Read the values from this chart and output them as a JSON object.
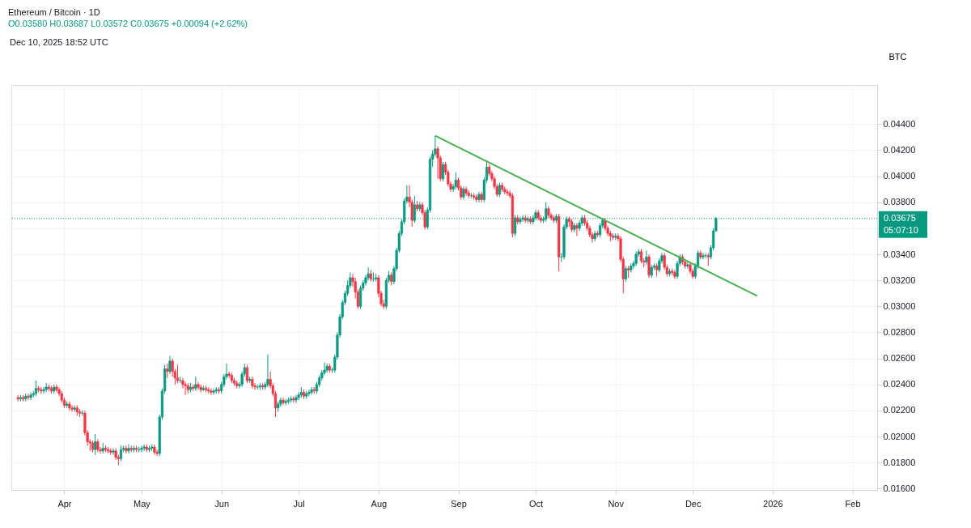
{
  "chart_data": {
    "type": "candlestick",
    "title": "Ethereum / Bitcoin · 1D",
    "subtitle": "O0.03580 H0.03687 L0.03572 C0.03675 +0.00094 (+2.62%)",
    "ylabel": "BTC",
    "annotations": [
      "Dec 10, 2025 18:52 UTC",
      "05:07:10"
    ],
    "colors": [
      "#f23645",
      "#089981",
      "#f23645",
      "#089981",
      "#f23645",
      "#089981",
      "#089981",
      "#089981",
      "#f23645",
      "#f23645",
      "#089981",
      "#089981",
      "#f23645",
      "#f23645",
      "#089981",
      "#f23645",
      "#f23645",
      "#f23645",
      "#f23645",
      "#089981",
      "#f23645",
      "#f23645",
      "#089981",
      "#f23645",
      "#f23645",
      "#089981",
      "#f23645",
      "#f23645",
      "#f23645",
      "#f23645",
      "#089981",
      "#f23645",
      "#f23645",
      "#089981",
      "#f23645",
      "#f23645",
      "#f23645",
      "#089981",
      "#f23645",
      "#f23645",
      "#089981",
      "#089981",
      "#f23645",
      "#089981",
      "#f23645",
      "#089981",
      "#f23645",
      "#089981",
      "#089981",
      "#089981",
      "#f23645",
      "#089981",
      "#089981",
      "#f23645",
      "#f23645",
      "#089981",
      "#089981",
      "#089981",
      "#f23645",
      "#089981",
      "#f23645",
      "#f23645",
      "#f23645",
      "#089981",
      "#f23645",
      "#f23645",
      "#f23645",
      "#089981",
      "#f23645",
      "#089981",
      "#f23645",
      "#f23645",
      "#089981",
      "#f23645",
      "#f23645",
      "#f23645",
      "#089981",
      "#089981",
      "#f23645",
      "#089981",
      "#089981",
      "#089981",
      "#f23645",
      "#f23645",
      "#f23645",
      "#f23645",
      "#089981",
      "#089981",
      "#089981",
      "#f23645",
      "#089981",
      "#f23645",
      "#f23645",
      "#089981",
      "#089981",
      "#f23645",
      "#089981",
      "#089981",
      "#f23645",
      "#f23645",
      "#f23645",
      "#089981",
      "#089981",
      "#f23645",
      "#089981",
      "#089981",
      "#089981",
      "#f23645",
      "#089981",
      "#089981",
      "#089981",
      "#f23645",
      "#089981",
      "#089981",
      "#089981",
      "#f23645",
      "#089981",
      "#089981",
      "#089981",
      "#089981",
      "#089981",
      "#f23645",
      "#089981",
      "#089981",
      "#089981",
      "#089981",
      "#089981",
      "#089981",
      "#089981",
      "#089981",
      "#f23645",
      "#f23645",
      "#f23645",
      "#089981",
      "#089981",
      "#089981",
      "#089981",
      "#f23645",
      "#089981",
      "#089981",
      "#f23645",
      "#f23645",
      "#f23645",
      "#089981",
      "#089981",
      "#f23645",
      "#089981",
      "#089981",
      "#089981",
      "#089981",
      "#089981",
      "#089981",
      "#f23645",
      "#f23645",
      "#089981",
      "#f23645",
      "#089981",
      "#f23645",
      "#f23645",
      "#089981",
      "#089981",
      "#089981",
      "#089981",
      "#f23645",
      "#f23645",
      "#089981",
      "#f23645",
      "#f23645",
      "#f23645",
      "#089981",
      "#089981",
      "#f23645",
      "#f23645",
      "#089981",
      "#f23645",
      "#f23645",
      "#089981",
      "#f23645",
      "#f23645",
      "#089981",
      "#f23645",
      "#089981",
      "#089981",
      "#f23645",
      "#f23645",
      "#f23645",
      "#f23645",
      "#089981",
      "#f23645",
      "#f23645",
      "#f23645",
      "#f23645",
      "#f23645",
      "#089981",
      "#f23645",
      "#089981",
      "#089981",
      "#f23645",
      "#089981",
      "#f23645",
      "#089981",
      "#089981",
      "#f23645",
      "#f23645",
      "#089981",
      "#089981",
      "#f23645",
      "#f23645",
      "#f23645",
      "#089981",
      "#f23645",
      "#089981",
      "#089981",
      "#089981",
      "#f23645",
      "#f23645",
      "#089981",
      "#f23645",
      "#089981",
      "#089981",
      "#f23645",
      "#f23645",
      "#f23645",
      "#f23645",
      "#089981",
      "#f23645",
      "#089981",
      "#089981",
      "#f23645",
      "#f23645",
      "#f23645",
      "#f23645",
      "#089981",
      "#f23645",
      "#f23645",
      "#f23645",
      "#089981",
      "#f23645",
      "#089981",
      "#089981",
      "#089981",
      "#089981",
      "#f23645",
      "#f23645",
      "#089981",
      "#f23645",
      "#089981",
      "#089981",
      "#f23645",
      "#089981",
      "#089981",
      "#f23645",
      "#f23645",
      "#089981",
      "#f23645",
      "#f23645",
      "#089981",
      "#089981",
      "#f23645",
      "#f23645",
      "#089981",
      "#f23645",
      "#f23645",
      "#089981",
      "#089981",
      "#f23645",
      "#089981",
      "#089981",
      "#f23645",
      "#089981",
      "#089981",
      "#089981"
    ],
    "grid": true,
    "xlim": [
      "2025-03-13",
      "2026-02-09"
    ],
    "xticks": [
      {
        "value": "2025-04-01",
        "label": "Apr"
      },
      {
        "value": "2025-05-01",
        "label": "May"
      },
      {
        "value": "2025-06-01",
        "label": "Jun"
      },
      {
        "value": "2025-07-01",
        "label": "Jul"
      },
      {
        "value": "2025-08-01",
        "label": "Aug"
      },
      {
        "value": "2025-09-01",
        "label": "Sep"
      },
      {
        "value": "2025-10-01",
        "label": "Oct"
      },
      {
        "value": "2025-11-01",
        "label": "Nov"
      },
      {
        "value": "2025-12-01",
        "label": "Dec"
      },
      {
        "value": "2026-01-01",
        "label": "2026"
      },
      {
        "value": "2026-02-01",
        "label": "Feb"
      }
    ],
    "ylim": [
      0.0159,
      0.047
    ],
    "yticks": [
      {
        "value": 0.016,
        "label": "0.01600"
      },
      {
        "value": 0.018,
        "label": "0.01800"
      },
      {
        "value": 0.02,
        "label": "0.02000"
      },
      {
        "value": 0.022,
        "label": "0.02200"
      },
      {
        "value": 0.024,
        "label": "0.02400"
      },
      {
        "value": 0.026,
        "label": "0.02600"
      },
      {
        "value": 0.028,
        "label": "0.02800"
      },
      {
        "value": 0.03,
        "label": "0.03000"
      },
      {
        "value": 0.032,
        "label": "0.03200"
      },
      {
        "value": 0.034,
        "label": "0.03400"
      },
      {
        "value": 0.036,
        "label": null
      },
      {
        "value": 0.038,
        "label": "0.03800"
      },
      {
        "value": 0.04,
        "label": "0.04000"
      },
      {
        "value": 0.042,
        "label": "0.04200"
      },
      {
        "value": 0.044,
        "label": "0.04400"
      }
    ],
    "ref_lines": [
      {
        "axis": "y",
        "value": 0.03675,
        "label": "0.03675",
        "color": "#089981",
        "line_style": "dotted"
      }
    ],
    "series": [
      {
        "type": "line",
        "color": "#4caf50",
        "x": [
          "2025-08-23",
          "2025-12-26"
        ],
        "values": [
          0.0431,
          0.0308
        ]
      }
    ],
    "x": [
      "2025-03-14",
      "2025-03-15",
      "2025-03-16",
      "2025-03-17",
      "2025-03-18",
      "2025-03-19",
      "2025-03-20",
      "2025-03-21",
      "2025-03-22",
      "2025-03-23",
      "2025-03-24",
      "2025-03-25",
      "2025-03-26",
      "2025-03-27",
      "2025-03-28",
      "2025-03-29",
      "2025-03-30",
      "2025-03-31",
      "2025-04-01",
      "2025-04-02",
      "2025-04-03",
      "2025-04-04",
      "2025-04-05",
      "2025-04-06",
      "2025-04-07",
      "2025-04-08",
      "2025-04-09",
      "2025-04-10",
      "2025-04-11",
      "2025-04-12",
      "2025-04-13",
      "2025-04-14",
      "2025-04-15",
      "2025-04-16",
      "2025-04-17",
      "2025-04-18",
      "2025-04-19",
      "2025-04-20",
      "2025-04-21",
      "2025-04-22",
      "2025-04-23",
      "2025-04-24",
      "2025-04-25",
      "2025-04-26",
      "2025-04-27",
      "2025-04-28",
      "2025-04-29",
      "2025-04-30",
      "2025-05-01",
      "2025-05-02",
      "2025-05-03",
      "2025-05-04",
      "2025-05-05",
      "2025-05-06",
      "2025-05-07",
      "2025-05-08",
      "2025-05-09",
      "2025-05-10",
      "2025-05-11",
      "2025-05-12",
      "2025-05-13",
      "2025-05-14",
      "2025-05-15",
      "2025-05-16",
      "2025-05-17",
      "2025-05-18",
      "2025-05-19",
      "2025-05-20",
      "2025-05-21",
      "2025-05-22",
      "2025-05-23",
      "2025-05-24",
      "2025-05-25",
      "2025-05-26",
      "2025-05-27",
      "2025-05-28",
      "2025-05-29",
      "2025-05-30",
      "2025-05-31",
      "2025-06-01",
      "2025-06-02",
      "2025-06-03",
      "2025-06-04",
      "2025-06-05",
      "2025-06-06",
      "2025-06-07",
      "2025-06-08",
      "2025-06-09",
      "2025-06-10",
      "2025-06-11",
      "2025-06-12",
      "2025-06-13",
      "2025-06-14",
      "2025-06-15",
      "2025-06-16",
      "2025-06-17",
      "2025-06-18",
      "2025-06-19",
      "2025-06-20",
      "2025-06-21",
      "2025-06-22",
      "2025-06-23",
      "2025-06-24",
      "2025-06-25",
      "2025-06-26",
      "2025-06-27",
      "2025-06-28",
      "2025-06-29",
      "2025-06-30",
      "2025-07-01",
      "2025-07-02",
      "2025-07-03",
      "2025-07-04",
      "2025-07-05",
      "2025-07-06",
      "2025-07-07",
      "2025-07-08",
      "2025-07-09",
      "2025-07-10",
      "2025-07-11",
      "2025-07-12",
      "2025-07-13",
      "2025-07-14",
      "2025-07-15",
      "2025-07-16",
      "2025-07-17",
      "2025-07-18",
      "2025-07-19",
      "2025-07-20",
      "2025-07-21",
      "2025-07-22",
      "2025-07-23",
      "2025-07-24",
      "2025-07-25",
      "2025-07-26",
      "2025-07-27",
      "2025-07-28",
      "2025-07-29",
      "2025-07-30",
      "2025-07-31",
      "2025-08-01",
      "2025-08-02",
      "2025-08-03",
      "2025-08-04",
      "2025-08-05",
      "2025-08-06",
      "2025-08-07",
      "2025-08-08",
      "2025-08-09",
      "2025-08-10",
      "2025-08-11",
      "2025-08-12",
      "2025-08-13",
      "2025-08-14",
      "2025-08-15",
      "2025-08-16",
      "2025-08-17",
      "2025-08-18",
      "2025-08-19",
      "2025-08-20",
      "2025-08-21",
      "2025-08-22",
      "2025-08-23",
      "2025-08-24",
      "2025-08-25",
      "2025-08-26",
      "2025-08-27",
      "2025-08-28",
      "2025-08-29",
      "2025-08-30",
      "2025-08-31",
      "2025-09-01",
      "2025-09-02",
      "2025-09-03",
      "2025-09-04",
      "2025-09-05",
      "2025-09-06",
      "2025-09-07",
      "2025-09-08",
      "2025-09-09",
      "2025-09-10",
      "2025-09-11",
      "2025-09-12",
      "2025-09-13",
      "2025-09-14",
      "2025-09-15",
      "2025-09-16",
      "2025-09-17",
      "2025-09-18",
      "2025-09-19",
      "2025-09-20",
      "2025-09-21",
      "2025-09-22",
      "2025-09-23",
      "2025-09-24",
      "2025-09-25",
      "2025-09-26",
      "2025-09-27",
      "2025-09-28",
      "2025-09-29",
      "2025-09-30",
      "2025-10-01",
      "2025-10-02",
      "2025-10-03",
      "2025-10-04",
      "2025-10-05",
      "2025-10-06",
      "2025-10-07",
      "2025-10-08",
      "2025-10-09",
      "2025-10-10",
      "2025-10-11",
      "2025-10-12",
      "2025-10-13",
      "2025-10-14",
      "2025-10-15",
      "2025-10-16",
      "2025-10-17",
      "2025-10-18",
      "2025-10-19",
      "2025-10-20",
      "2025-10-21",
      "2025-10-22",
      "2025-10-23",
      "2025-10-24",
      "2025-10-25",
      "2025-10-26",
      "2025-10-27",
      "2025-10-28",
      "2025-10-29",
      "2025-10-30",
      "2025-10-31",
      "2025-11-01",
      "2025-11-02",
      "2025-11-03",
      "2025-11-04",
      "2025-11-05",
      "2025-11-06",
      "2025-11-07",
      "2025-11-08",
      "2025-11-09",
      "2025-11-10",
      "2025-11-11",
      "2025-11-12",
      "2025-11-13",
      "2025-11-14",
      "2025-11-15",
      "2025-11-16",
      "2025-11-17",
      "2025-11-18",
      "2025-11-19",
      "2025-11-20",
      "2025-11-21",
      "2025-11-22",
      "2025-11-23",
      "2025-11-24",
      "2025-11-25",
      "2025-11-26",
      "2025-11-27",
      "2025-11-28",
      "2025-11-29",
      "2025-11-30",
      "2025-12-01",
      "2025-12-02",
      "2025-12-03",
      "2025-12-04",
      "2025-12-05",
      "2025-12-06",
      "2025-12-07",
      "2025-12-08",
      "2025-12-09",
      "2025-12-10"
    ],
    "ohlc": [
      [
        0.023,
        0.0232,
        0.0227,
        0.0229
      ],
      [
        0.0229,
        0.0232,
        0.0227,
        0.023
      ],
      [
        0.023,
        0.0232,
        0.0227,
        0.0229
      ],
      [
        0.0229,
        0.0233,
        0.0227,
        0.0231
      ],
      [
        0.0231,
        0.0233,
        0.0228,
        0.023
      ],
      [
        0.023,
        0.0234,
        0.0228,
        0.0232
      ],
      [
        0.0232,
        0.0235,
        0.023,
        0.0233
      ],
      [
        0.0233,
        0.0243,
        0.0231,
        0.0237
      ],
      [
        0.0237,
        0.0239,
        0.0234,
        0.0236
      ],
      [
        0.0236,
        0.0238,
        0.0233,
        0.0235
      ],
      [
        0.0235,
        0.0238,
        0.0233,
        0.0236
      ],
      [
        0.0236,
        0.0241,
        0.0234,
        0.0238
      ],
      [
        0.0238,
        0.024,
        0.0235,
        0.0237
      ],
      [
        0.0237,
        0.0239,
        0.0233,
        0.0235
      ],
      [
        0.0235,
        0.024,
        0.0233,
        0.0238
      ],
      [
        0.0238,
        0.024,
        0.0234,
        0.0236
      ],
      [
        0.0236,
        0.0238,
        0.0231,
        0.0233
      ],
      [
        0.0233,
        0.0235,
        0.0226,
        0.0228
      ],
      [
        0.0228,
        0.023,
        0.0222,
        0.0224
      ],
      [
        0.0224,
        0.0227,
        0.0222,
        0.0225
      ],
      [
        0.0225,
        0.0227,
        0.022,
        0.0222
      ],
      [
        0.0222,
        0.0224,
        0.0219,
        0.0221
      ],
      [
        0.0221,
        0.0224,
        0.0219,
        0.0222
      ],
      [
        0.0222,
        0.0224,
        0.0216,
        0.0219
      ],
      [
        0.0219,
        0.0221,
        0.0215,
        0.0218
      ],
      [
        0.0218,
        0.022,
        0.0216,
        0.0218
      ],
      [
        0.0218,
        0.022,
        0.0201,
        0.0203
      ],
      [
        0.0203,
        0.0205,
        0.0193,
        0.0196
      ],
      [
        0.0196,
        0.0198,
        0.0189,
        0.0195
      ],
      [
        0.0195,
        0.0197,
        0.0188,
        0.019
      ],
      [
        0.019,
        0.0202,
        0.0186,
        0.0196
      ],
      [
        0.0196,
        0.0198,
        0.0188,
        0.019
      ],
      [
        0.019,
        0.0192,
        0.0187,
        0.0189
      ],
      [
        0.0189,
        0.0195,
        0.0187,
        0.0191
      ],
      [
        0.0191,
        0.0193,
        0.0188,
        0.019
      ],
      [
        0.019,
        0.0192,
        0.0187,
        0.0189
      ],
      [
        0.0189,
        0.0191,
        0.0186,
        0.0188
      ],
      [
        0.0188,
        0.0191,
        0.0186,
        0.0189
      ],
      [
        0.0189,
        0.0191,
        0.0182,
        0.0184
      ],
      [
        0.0184,
        0.0186,
        0.0178,
        0.0183
      ],
      [
        0.0183,
        0.0193,
        0.0181,
        0.019
      ],
      [
        0.019,
        0.0193,
        0.0188,
        0.0191
      ],
      [
        0.0191,
        0.0193,
        0.0187,
        0.0189
      ],
      [
        0.0189,
        0.0194,
        0.0187,
        0.0191
      ],
      [
        0.0191,
        0.0193,
        0.0188,
        0.019
      ],
      [
        0.019,
        0.0193,
        0.0188,
        0.0191
      ],
      [
        0.0191,
        0.0193,
        0.0188,
        0.019
      ],
      [
        0.019,
        0.0192,
        0.0188,
        0.019
      ],
      [
        0.019,
        0.0193,
        0.0188,
        0.0191
      ],
      [
        0.0191,
        0.0194,
        0.0189,
        0.0192
      ],
      [
        0.0192,
        0.0194,
        0.0188,
        0.019
      ],
      [
        0.019,
        0.0193,
        0.0188,
        0.0191
      ],
      [
        0.0191,
        0.0194,
        0.0189,
        0.0192
      ],
      [
        0.0192,
        0.0194,
        0.0186,
        0.0188
      ],
      [
        0.0188,
        0.019,
        0.0185,
        0.0187
      ],
      [
        0.0187,
        0.0217,
        0.0185,
        0.0215
      ],
      [
        0.0215,
        0.0237,
        0.0213,
        0.0235
      ],
      [
        0.0235,
        0.0255,
        0.0233,
        0.0252
      ],
      [
        0.0252,
        0.0256,
        0.0245,
        0.025
      ],
      [
        0.025,
        0.0262,
        0.0248,
        0.0258
      ],
      [
        0.0258,
        0.026,
        0.0246,
        0.025
      ],
      [
        0.025,
        0.0252,
        0.024,
        0.0245
      ],
      [
        0.0245,
        0.0255,
        0.0241,
        0.0243
      ],
      [
        0.0243,
        0.0246,
        0.0241,
        0.0243
      ],
      [
        0.0243,
        0.0245,
        0.0237,
        0.024
      ],
      [
        0.024,
        0.0242,
        0.0232,
        0.0239
      ],
      [
        0.0239,
        0.0241,
        0.0233,
        0.0236
      ],
      [
        0.0236,
        0.0241,
        0.0234,
        0.0238
      ],
      [
        0.0238,
        0.024,
        0.0235,
        0.0237
      ],
      [
        0.0237,
        0.0246,
        0.0235,
        0.024
      ],
      [
        0.024,
        0.0242,
        0.0236,
        0.0238
      ],
      [
        0.0238,
        0.024,
        0.0234,
        0.0236
      ],
      [
        0.0236,
        0.0239,
        0.0235,
        0.0237
      ],
      [
        0.0237,
        0.0239,
        0.0234,
        0.0236
      ],
      [
        0.0236,
        0.0238,
        0.0233,
        0.0235
      ],
      [
        0.0235,
        0.0237,
        0.0232,
        0.0234
      ],
      [
        0.0234,
        0.0237,
        0.0232,
        0.0235
      ],
      [
        0.0235,
        0.0238,
        0.0233,
        0.0236
      ],
      [
        0.0236,
        0.0238,
        0.0233,
        0.0235
      ],
      [
        0.0235,
        0.0242,
        0.0233,
        0.024
      ],
      [
        0.024,
        0.0248,
        0.0238,
        0.0246
      ],
      [
        0.0246,
        0.0256,
        0.0244,
        0.0248
      ],
      [
        0.0248,
        0.025,
        0.0245,
        0.0247
      ],
      [
        0.0247,
        0.0249,
        0.0241,
        0.0243
      ],
      [
        0.0243,
        0.0245,
        0.0239,
        0.0241
      ],
      [
        0.0241,
        0.0243,
        0.0237,
        0.0239
      ],
      [
        0.0239,
        0.0242,
        0.0237,
        0.024
      ],
      [
        0.024,
        0.025,
        0.0238,
        0.0248
      ],
      [
        0.0248,
        0.0256,
        0.0246,
        0.0253
      ],
      [
        0.0253,
        0.0255,
        0.0241,
        0.0243
      ],
      [
        0.0243,
        0.0246,
        0.0241,
        0.0244
      ],
      [
        0.0244,
        0.0246,
        0.0237,
        0.0239
      ],
      [
        0.0239,
        0.0241,
        0.0236,
        0.0238
      ],
      [
        0.0238,
        0.024,
        0.0236,
        0.0238
      ],
      [
        0.0238,
        0.0241,
        0.0236,
        0.0239
      ],
      [
        0.0239,
        0.0241,
        0.0236,
        0.0238
      ],
      [
        0.0238,
        0.0242,
        0.0236,
        0.024
      ],
      [
        0.024,
        0.0263,
        0.0238,
        0.0244
      ],
      [
        0.0244,
        0.025,
        0.0237,
        0.0239
      ],
      [
        0.0239,
        0.0241,
        0.0231,
        0.0233
      ],
      [
        0.0233,
        0.0235,
        0.0215,
        0.0222
      ],
      [
        0.0222,
        0.0227,
        0.0219,
        0.0225
      ],
      [
        0.0225,
        0.023,
        0.0223,
        0.0228
      ],
      [
        0.0228,
        0.023,
        0.0224,
        0.0226
      ],
      [
        0.0226,
        0.0229,
        0.0224,
        0.0227
      ],
      [
        0.0227,
        0.023,
        0.0225,
        0.0228
      ],
      [
        0.0228,
        0.0231,
        0.0226,
        0.0229
      ],
      [
        0.0229,
        0.0231,
        0.0226,
        0.0228
      ],
      [
        0.0228,
        0.0232,
        0.0226,
        0.023
      ],
      [
        0.023,
        0.0234,
        0.0228,
        0.0232
      ],
      [
        0.0232,
        0.0238,
        0.023,
        0.0234
      ],
      [
        0.0234,
        0.0236,
        0.0229,
        0.0231
      ],
      [
        0.0231,
        0.0235,
        0.0229,
        0.0233
      ],
      [
        0.0233,
        0.0236,
        0.0231,
        0.0234
      ],
      [
        0.0234,
        0.0238,
        0.0232,
        0.0236
      ],
      [
        0.0236,
        0.0238,
        0.0233,
        0.0235
      ],
      [
        0.0235,
        0.0242,
        0.0233,
        0.024
      ],
      [
        0.024,
        0.0247,
        0.0238,
        0.0245
      ],
      [
        0.0245,
        0.0251,
        0.0243,
        0.0249
      ],
      [
        0.0249,
        0.0257,
        0.0247,
        0.0251
      ],
      [
        0.0251,
        0.0256,
        0.0249,
        0.0254
      ],
      [
        0.0254,
        0.0256,
        0.0249,
        0.0251
      ],
      [
        0.0251,
        0.0253,
        0.0249,
        0.0251
      ],
      [
        0.0251,
        0.0263,
        0.0249,
        0.0261
      ],
      [
        0.0261,
        0.028,
        0.0259,
        0.0278
      ],
      [
        0.0278,
        0.0294,
        0.0276,
        0.0292
      ],
      [
        0.0292,
        0.0305,
        0.029,
        0.0303
      ],
      [
        0.0303,
        0.0312,
        0.0301,
        0.031
      ],
      [
        0.031,
        0.032,
        0.0308,
        0.0316
      ],
      [
        0.0316,
        0.0326,
        0.0314,
        0.0322
      ],
      [
        0.0322,
        0.0325,
        0.0315,
        0.0319
      ],
      [
        0.0319,
        0.0322,
        0.0306,
        0.0311
      ],
      [
        0.0311,
        0.0313,
        0.0298,
        0.03
      ],
      [
        0.03,
        0.0316,
        0.0298,
        0.0314
      ],
      [
        0.0314,
        0.032,
        0.0312,
        0.0318
      ],
      [
        0.0318,
        0.0324,
        0.0316,
        0.0322
      ],
      [
        0.0322,
        0.033,
        0.032,
        0.0325
      ],
      [
        0.0325,
        0.0328,
        0.0319,
        0.0321
      ],
      [
        0.0321,
        0.0326,
        0.0319,
        0.0321
      ],
      [
        0.0321,
        0.0325,
        0.0319,
        0.0322
      ],
      [
        0.0322,
        0.0324,
        0.0307,
        0.031
      ],
      [
        0.031,
        0.0312,
        0.03,
        0.0302
      ],
      [
        0.0302,
        0.0305,
        0.0298,
        0.03
      ],
      [
        0.03,
        0.0322,
        0.0298,
        0.032
      ],
      [
        0.032,
        0.0327,
        0.0318,
        0.0324
      ],
      [
        0.0324,
        0.0326,
        0.0316,
        0.0319
      ],
      [
        0.0319,
        0.0331,
        0.0317,
        0.0329
      ],
      [
        0.0329,
        0.0345,
        0.0327,
        0.0343
      ],
      [
        0.0343,
        0.0358,
        0.0341,
        0.0356
      ],
      [
        0.0356,
        0.0367,
        0.0354,
        0.0365
      ],
      [
        0.0365,
        0.0383,
        0.0363,
        0.0381
      ],
      [
        0.0381,
        0.0393,
        0.0379,
        0.0384
      ],
      [
        0.0384,
        0.0393,
        0.0376,
        0.038
      ],
      [
        0.038,
        0.0382,
        0.0361,
        0.0366
      ],
      [
        0.0366,
        0.0385,
        0.0364,
        0.0378
      ],
      [
        0.0378,
        0.0381,
        0.0373,
        0.0375
      ],
      [
        0.0375,
        0.038,
        0.0373,
        0.0378
      ],
      [
        0.0378,
        0.038,
        0.037,
        0.0372
      ],
      [
        0.0372,
        0.0374,
        0.0359,
        0.0361
      ],
      [
        0.0361,
        0.0376,
        0.0359,
        0.0374
      ],
      [
        0.0374,
        0.0415,
        0.0372,
        0.0413
      ],
      [
        0.0413,
        0.042,
        0.0407,
        0.0417
      ],
      [
        0.0417,
        0.0431,
        0.0415,
        0.0421
      ],
      [
        0.0421,
        0.0423,
        0.0398,
        0.0414
      ],
      [
        0.0414,
        0.0416,
        0.0396,
        0.0398
      ],
      [
        0.0398,
        0.0411,
        0.0396,
        0.0409
      ],
      [
        0.0409,
        0.0411,
        0.0401,
        0.0403
      ],
      [
        0.0403,
        0.0405,
        0.0392,
        0.0394
      ],
      [
        0.0394,
        0.0396,
        0.0388,
        0.039
      ],
      [
        0.039,
        0.0394,
        0.0388,
        0.0392
      ],
      [
        0.0392,
        0.0403,
        0.039,
        0.0397
      ],
      [
        0.0397,
        0.0399,
        0.0389,
        0.0391
      ],
      [
        0.0391,
        0.0393,
        0.0382,
        0.0384
      ],
      [
        0.0384,
        0.0392,
        0.0382,
        0.039
      ],
      [
        0.039,
        0.0392,
        0.0385,
        0.0387
      ],
      [
        0.0387,
        0.0389,
        0.0383,
        0.0385
      ],
      [
        0.0385,
        0.0387,
        0.0383,
        0.0385
      ],
      [
        0.0385,
        0.0387,
        0.0382,
        0.0384
      ],
      [
        0.0384,
        0.0386,
        0.038,
        0.0382
      ],
      [
        0.0382,
        0.0388,
        0.038,
        0.0386
      ],
      [
        0.0386,
        0.0388,
        0.038,
        0.0382
      ],
      [
        0.0382,
        0.0399,
        0.038,
        0.0397
      ],
      [
        0.0397,
        0.0412,
        0.0395,
        0.0407
      ],
      [
        0.0407,
        0.0409,
        0.04,
        0.0402
      ],
      [
        0.0402,
        0.0404,
        0.0396,
        0.0398
      ],
      [
        0.0398,
        0.04,
        0.039,
        0.0392
      ],
      [
        0.0392,
        0.0394,
        0.0384,
        0.0386
      ],
      [
        0.0386,
        0.0395,
        0.0384,
        0.0393
      ],
      [
        0.0393,
        0.0395,
        0.0388,
        0.039
      ],
      [
        0.039,
        0.0392,
        0.0386,
        0.0388
      ],
      [
        0.0388,
        0.039,
        0.0385,
        0.0387
      ],
      [
        0.0387,
        0.0389,
        0.0383,
        0.0385
      ],
      [
        0.0385,
        0.0387,
        0.0353,
        0.0356
      ],
      [
        0.0356,
        0.037,
        0.0354,
        0.0368
      ],
      [
        0.0368,
        0.037,
        0.0363,
        0.0365
      ],
      [
        0.0365,
        0.0369,
        0.0363,
        0.0367
      ],
      [
        0.0367,
        0.037,
        0.0365,
        0.0368
      ],
      [
        0.0368,
        0.037,
        0.0364,
        0.0366
      ],
      [
        0.0366,
        0.0369,
        0.0364,
        0.0367
      ],
      [
        0.0367,
        0.0369,
        0.0363,
        0.0365
      ],
      [
        0.0365,
        0.037,
        0.0363,
        0.0368
      ],
      [
        0.0368,
        0.0374,
        0.0366,
        0.0372
      ],
      [
        0.0372,
        0.0374,
        0.0366,
        0.0368
      ],
      [
        0.0368,
        0.037,
        0.0364,
        0.0366
      ],
      [
        0.0366,
        0.0369,
        0.0364,
        0.0367
      ],
      [
        0.0367,
        0.038,
        0.0365,
        0.0375
      ],
      [
        0.0375,
        0.0377,
        0.0368,
        0.037
      ],
      [
        0.037,
        0.0372,
        0.0366,
        0.0368
      ],
      [
        0.0368,
        0.037,
        0.0364,
        0.0366
      ],
      [
        0.0366,
        0.0371,
        0.0364,
        0.0369
      ],
      [
        0.0369,
        0.0371,
        0.0327,
        0.0338
      ],
      [
        0.0338,
        0.0341,
        0.0334,
        0.0338
      ],
      [
        0.0338,
        0.0363,
        0.0336,
        0.0361
      ],
      [
        0.0361,
        0.0369,
        0.0359,
        0.0367
      ],
      [
        0.0367,
        0.0369,
        0.0361,
        0.0365
      ],
      [
        0.0365,
        0.0367,
        0.0357,
        0.0359
      ],
      [
        0.0359,
        0.0364,
        0.0357,
        0.0362
      ],
      [
        0.0362,
        0.0364,
        0.0354,
        0.036
      ],
      [
        0.036,
        0.0366,
        0.0358,
        0.0364
      ],
      [
        0.0364,
        0.037,
        0.0362,
        0.0368
      ],
      [
        0.0368,
        0.037,
        0.0362,
        0.0364
      ],
      [
        0.0364,
        0.0366,
        0.0358,
        0.036
      ],
      [
        0.036,
        0.0362,
        0.0353,
        0.0355
      ],
      [
        0.0355,
        0.0357,
        0.0349,
        0.0352
      ],
      [
        0.0352,
        0.0358,
        0.035,
        0.0356
      ],
      [
        0.0356,
        0.0358,
        0.0353,
        0.0355
      ],
      [
        0.0355,
        0.0364,
        0.0353,
        0.0362
      ],
      [
        0.0362,
        0.0368,
        0.036,
        0.0366
      ],
      [
        0.0366,
        0.0368,
        0.0358,
        0.036
      ],
      [
        0.036,
        0.0362,
        0.0354,
        0.0356
      ],
      [
        0.0356,
        0.0358,
        0.035,
        0.0354
      ],
      [
        0.0354,
        0.0356,
        0.0351,
        0.0353
      ],
      [
        0.0353,
        0.0356,
        0.0351,
        0.0354
      ],
      [
        0.0354,
        0.0356,
        0.035,
        0.0352
      ],
      [
        0.0352,
        0.0354,
        0.0334,
        0.0336
      ],
      [
        0.0336,
        0.0338,
        0.031,
        0.0321
      ],
      [
        0.0321,
        0.0331,
        0.0319,
        0.0329
      ],
      [
        0.0329,
        0.0331,
        0.0322,
        0.0328
      ],
      [
        0.0328,
        0.0333,
        0.0326,
        0.0331
      ],
      [
        0.0331,
        0.0335,
        0.0329,
        0.0333
      ],
      [
        0.0333,
        0.0342,
        0.0331,
        0.034
      ],
      [
        0.034,
        0.0344,
        0.0338,
        0.0342
      ],
      [
        0.0342,
        0.0344,
        0.0333,
        0.0335
      ],
      [
        0.0335,
        0.0337,
        0.033,
        0.0334
      ],
      [
        0.0334,
        0.0343,
        0.0332,
        0.0338
      ],
      [
        0.0338,
        0.034,
        0.0322,
        0.0324
      ],
      [
        0.0324,
        0.0332,
        0.0322,
        0.033
      ],
      [
        0.033,
        0.0333,
        0.0328,
        0.0331
      ],
      [
        0.0331,
        0.0333,
        0.0323,
        0.0328
      ],
      [
        0.0328,
        0.0337,
        0.0326,
        0.0335
      ],
      [
        0.0335,
        0.0341,
        0.0333,
        0.0339
      ],
      [
        0.0339,
        0.0341,
        0.0328,
        0.033
      ],
      [
        0.033,
        0.0332,
        0.0323,
        0.0325
      ],
      [
        0.0325,
        0.0329,
        0.0323,
        0.0327
      ],
      [
        0.0327,
        0.0329,
        0.0324,
        0.0326
      ],
      [
        0.0326,
        0.0328,
        0.0321,
        0.0323
      ],
      [
        0.0323,
        0.0335,
        0.0321,
        0.0333
      ],
      [
        0.0333,
        0.034,
        0.0331,
        0.0338
      ],
      [
        0.0338,
        0.034,
        0.0332,
        0.0334
      ],
      [
        0.0334,
        0.0336,
        0.0329,
        0.0331
      ],
      [
        0.0331,
        0.0334,
        0.0329,
        0.0332
      ],
      [
        0.0332,
        0.0334,
        0.0325,
        0.0327
      ],
      [
        0.0327,
        0.0329,
        0.0321,
        0.0323
      ],
      [
        0.0323,
        0.0333,
        0.0321,
        0.0331
      ],
      [
        0.0331,
        0.0343,
        0.0329,
        0.0341
      ],
      [
        0.0341,
        0.0343,
        0.0336,
        0.0338
      ],
      [
        0.0338,
        0.0341,
        0.0336,
        0.0339
      ],
      [
        0.0339,
        0.0341,
        0.0337,
        0.0339
      ],
      [
        0.0339,
        0.0341,
        0.0331,
        0.0338
      ],
      [
        0.0338,
        0.0347,
        0.0336,
        0.0345
      ],
      [
        0.0345,
        0.036,
        0.0343,
        0.0358
      ],
      [
        0.0358,
        0.03687,
        0.03572,
        0.03675
      ]
    ]
  }
}
